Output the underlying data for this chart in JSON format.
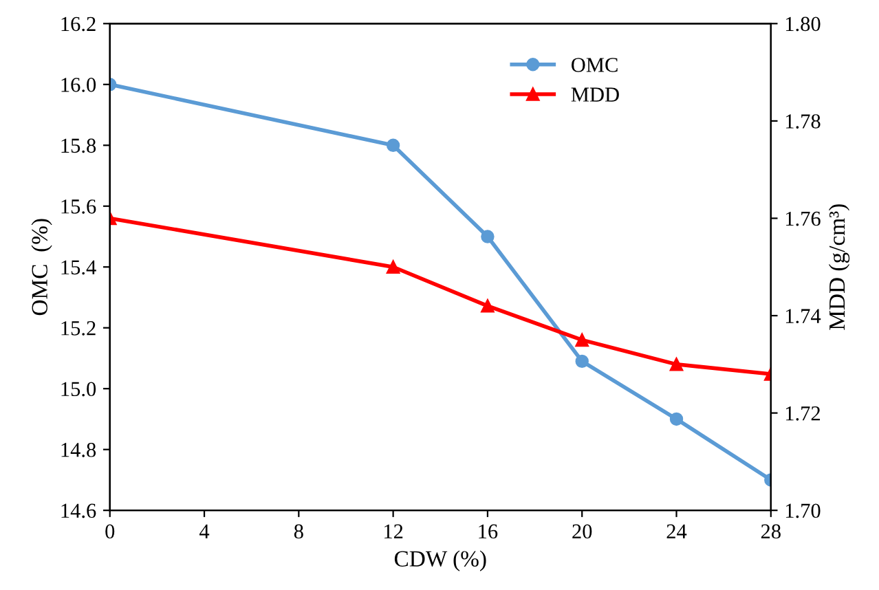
{
  "chart_data": {
    "type": "line",
    "xlabel": "CDW (%)",
    "ylabel": "OMC  (%)",
    "y2label": "MDD (g/cm³)",
    "x": [
      0,
      12,
      16,
      20,
      24,
      28
    ],
    "series": [
      {
        "name": "OMC",
        "color": "#5b9bd5",
        "marker": "circle",
        "values": [
          16.0,
          15.8,
          15.5,
          15.09,
          14.9,
          14.7
        ]
      },
      {
        "name": "MDD",
        "color": "#ff0000",
        "marker": "triangle",
        "axis": "y2",
        "values": [
          1.76,
          1.75,
          1.742,
          1.735,
          1.73,
          1.728
        ]
      }
    ],
    "xlim": [
      0,
      28
    ],
    "xticks": [
      0,
      4,
      8,
      12,
      16,
      20,
      24,
      28
    ],
    "ylim": [
      14.6,
      16.2
    ],
    "yticks": [
      {
        "value": 14.6,
        "label": "14.6"
      },
      {
        "value": 14.8,
        "label": "14.8"
      },
      {
        "value": 15.0,
        "label": "15.0"
      },
      {
        "value": 15.2,
        "label": "15.2"
      },
      {
        "value": 15.4,
        "label": "15.4"
      },
      {
        "value": 15.6,
        "label": "15.6"
      },
      {
        "value": 15.8,
        "label": "15.8"
      },
      {
        "value": 16.0,
        "label": "16.0"
      },
      {
        "value": 16.2,
        "label": "16.2"
      }
    ],
    "y2lim": [
      1.7,
      1.8
    ],
    "y2ticks": [
      {
        "value": 1.7,
        "label": "1.70"
      },
      {
        "value": 1.72,
        "label": "1.72"
      },
      {
        "value": 1.74,
        "label": "1.74"
      },
      {
        "value": 1.76,
        "label": "1.76"
      },
      {
        "value": 1.78,
        "label": "1.78"
      },
      {
        "value": 1.8,
        "label": "1.80"
      }
    ],
    "grid": false,
    "legend": "top right",
    "line_style": "solid"
  }
}
